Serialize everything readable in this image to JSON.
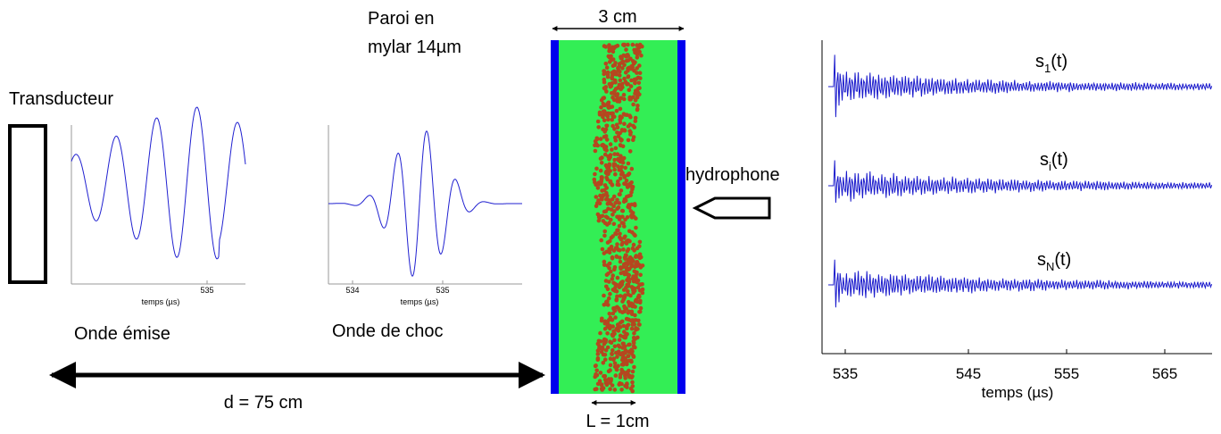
{
  "transducer": {
    "label": "Transducteur"
  },
  "emitted_wave": {
    "caption": "Onde émise",
    "axis_label": "temps (µs)",
    "ticks": [
      "535"
    ]
  },
  "shock_wave": {
    "caption": "Onde  de choc",
    "axis_label": "temps (µs)",
    "ticks": [
      "534",
      "535"
    ]
  },
  "wall": {
    "label_lines": [
      "Paroi en",
      "mylar 14µm"
    ]
  },
  "cell": {
    "width_label": "3 cm",
    "layer_label": "L = 1cm"
  },
  "distance": {
    "label": "d = 75 cm"
  },
  "hydrophone": {
    "label": "hydrophone"
  },
  "signals": {
    "traces": [
      {
        "base": "s",
        "subscript": "1",
        "arg": "(t)"
      },
      {
        "base": "s",
        "subscript": "i",
        "arg": "(t)"
      },
      {
        "base": "s",
        "subscript": "N",
        "arg": "(t)"
      }
    ],
    "ticks": [
      "535",
      "545",
      "555",
      "565"
    ],
    "axis_label": "temps (µs)"
  }
}
